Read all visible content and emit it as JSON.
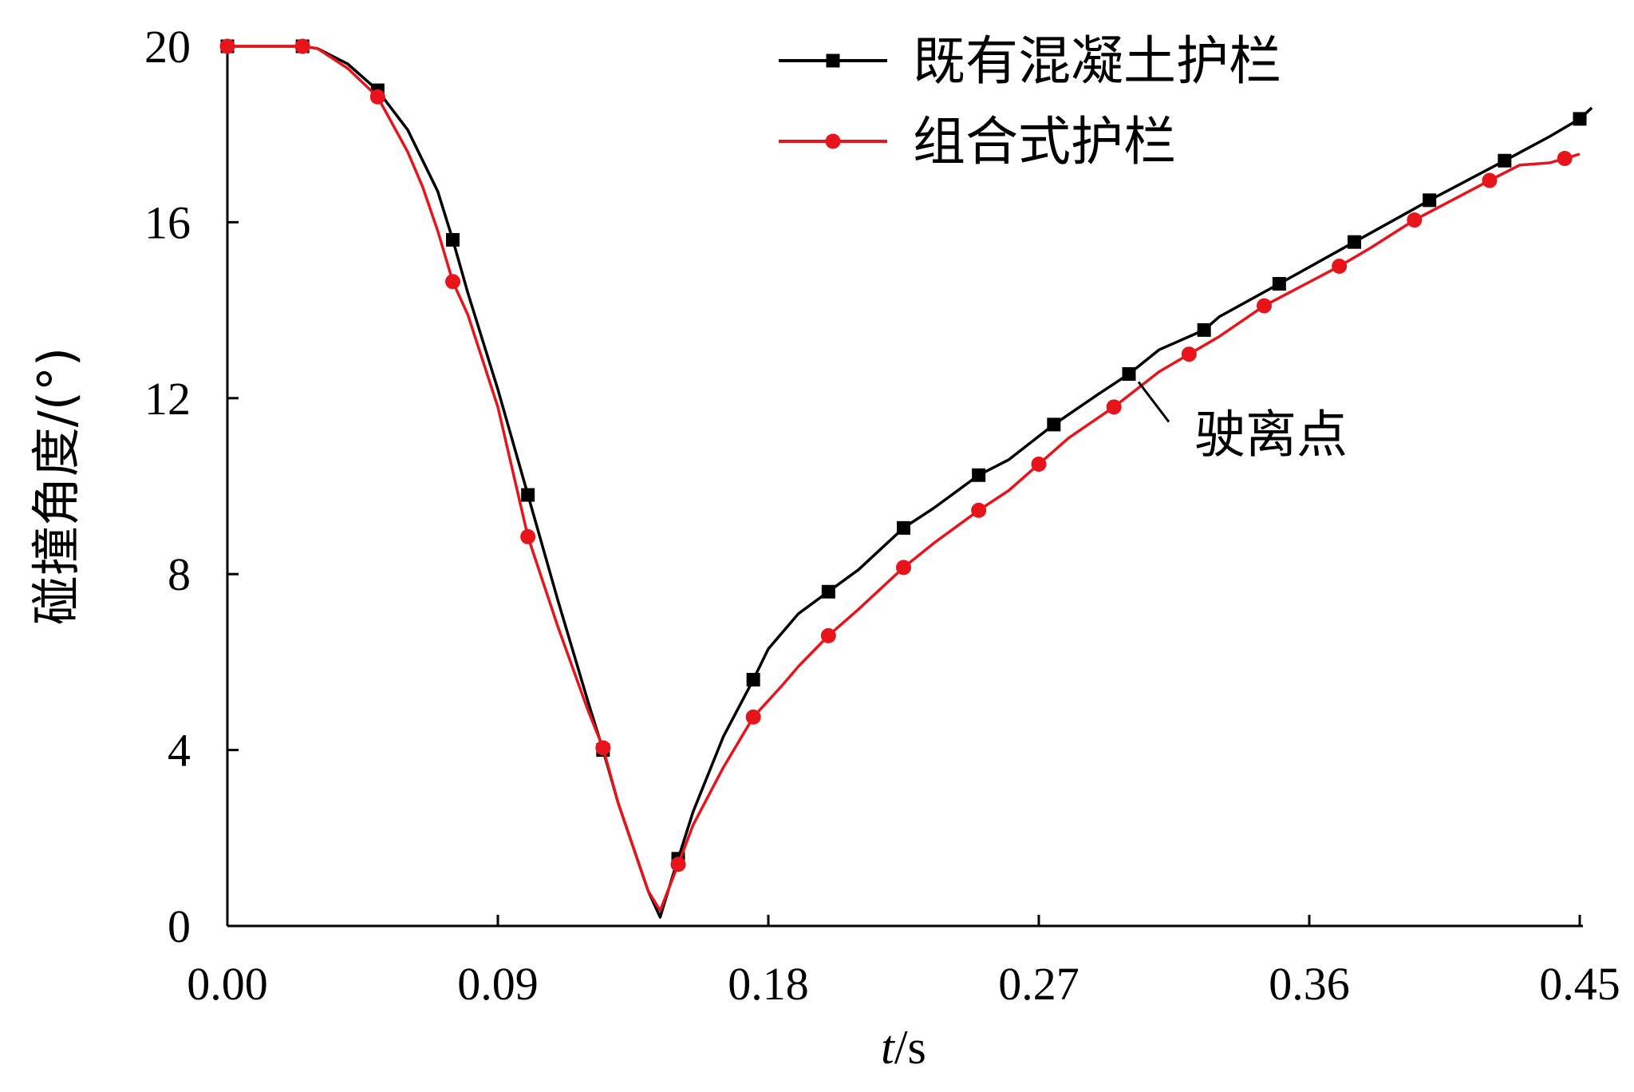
{
  "chart_data": {
    "type": "line",
    "xlabel_italic": "t",
    "xlabel_unit": "/s",
    "ylabel": "碰撞角度/(°)",
    "xlim": [
      0,
      0.45
    ],
    "ylim": [
      0,
      20
    ],
    "xticks": [
      "0.00",
      "0.09",
      "0.18",
      "0.27",
      "0.36",
      "0.45"
    ],
    "yticks": [
      "0",
      "4",
      "8",
      "12",
      "16",
      "20"
    ],
    "xtick_values": [
      0,
      0.09,
      0.18,
      0.27,
      0.36,
      0.45
    ],
    "ytick_values": [
      0,
      4,
      8,
      12,
      16,
      20
    ],
    "legend_position": "top-right",
    "grid": false,
    "series": [
      {
        "name": "既有混凝土护栏",
        "color": "#000000",
        "marker": "square",
        "line": [
          [
            0,
            20
          ],
          [
            0.025,
            20
          ],
          [
            0.03,
            19.95
          ],
          [
            0.04,
            19.6
          ],
          [
            0.05,
            19
          ],
          [
            0.06,
            18.1
          ],
          [
            0.07,
            16.7
          ],
          [
            0.075,
            15.6
          ],
          [
            0.08,
            14.4
          ],
          [
            0.09,
            12.2
          ],
          [
            0.1,
            9.8
          ],
          [
            0.11,
            7.4
          ],
          [
            0.12,
            5.1
          ],
          [
            0.125,
            4
          ],
          [
            0.13,
            2.8
          ],
          [
            0.14,
            0.8
          ],
          [
            0.144,
            0.2
          ],
          [
            0.148,
            1.1
          ],
          [
            0.155,
            2.6
          ],
          [
            0.165,
            4.3
          ],
          [
            0.175,
            5.6
          ],
          [
            0.18,
            6.3
          ],
          [
            0.19,
            7.1
          ],
          [
            0.2,
            7.6
          ],
          [
            0.21,
            8.1
          ],
          [
            0.225,
            9.05
          ],
          [
            0.235,
            9.5
          ],
          [
            0.25,
            10.25
          ],
          [
            0.26,
            10.6
          ],
          [
            0.275,
            11.4
          ],
          [
            0.29,
            12.1
          ],
          [
            0.3,
            12.55
          ],
          [
            0.31,
            13.1
          ],
          [
            0.325,
            13.55
          ],
          [
            0.33,
            13.85
          ],
          [
            0.35,
            14.6
          ],
          [
            0.375,
            15.55
          ],
          [
            0.4,
            16.5
          ],
          [
            0.425,
            17.4
          ],
          [
            0.44,
            17.95
          ],
          [
            0.45,
            18.35
          ],
          [
            0.454,
            18.6
          ]
        ],
        "markers_x": [
          0,
          0.025,
          0.05,
          0.075,
          0.1,
          0.125,
          0.15,
          0.175,
          0.2,
          0.225,
          0.25,
          0.275,
          0.3,
          0.325,
          0.35,
          0.375,
          0.4,
          0.425,
          0.45
        ]
      },
      {
        "name": "组合式护栏",
        "color": "#e8141b",
        "marker": "circle",
        "line": [
          [
            0,
            20
          ],
          [
            0.025,
            20
          ],
          [
            0.03,
            19.95
          ],
          [
            0.04,
            19.5
          ],
          [
            0.05,
            18.85
          ],
          [
            0.06,
            17.6
          ],
          [
            0.065,
            16.8
          ],
          [
            0.07,
            15.8
          ],
          [
            0.075,
            14.65
          ],
          [
            0.08,
            13.9
          ],
          [
            0.09,
            11.8
          ],
          [
            0.1,
            8.85
          ],
          [
            0.11,
            6.8
          ],
          [
            0.12,
            4.9
          ],
          [
            0.125,
            4.05
          ],
          [
            0.13,
            2.8
          ],
          [
            0.14,
            0.8
          ],
          [
            0.144,
            0.35
          ],
          [
            0.15,
            1.4
          ],
          [
            0.155,
            2.3
          ],
          [
            0.165,
            3.6
          ],
          [
            0.175,
            4.75
          ],
          [
            0.185,
            5.5
          ],
          [
            0.19,
            5.9
          ],
          [
            0.2,
            6.6
          ],
          [
            0.21,
            7.2
          ],
          [
            0.225,
            8.15
          ],
          [
            0.235,
            8.7
          ],
          [
            0.25,
            9.45
          ],
          [
            0.26,
            9.9
          ],
          [
            0.27,
            10.5
          ],
          [
            0.28,
            11.1
          ],
          [
            0.295,
            11.8
          ],
          [
            0.31,
            12.6
          ],
          [
            0.32,
            13
          ],
          [
            0.33,
            13.4
          ],
          [
            0.345,
            14.1
          ],
          [
            0.37,
            15
          ],
          [
            0.38,
            15.4
          ],
          [
            0.395,
            16.05
          ],
          [
            0.42,
            16.95
          ],
          [
            0.43,
            17.3
          ],
          [
            0.44,
            17.35
          ],
          [
            0.45,
            17.55
          ]
        ],
        "markers_x": [
          0,
          0.025,
          0.05,
          0.075,
          0.1,
          0.125,
          0.15,
          0.175,
          0.2,
          0.225,
          0.25,
          0.27,
          0.295,
          0.32,
          0.345,
          0.37,
          0.395,
          0.42,
          0.445
        ]
      }
    ],
    "annotations": [
      {
        "text": "驶离点",
        "points_to": [
          0.3,
          12.55
        ]
      }
    ]
  }
}
